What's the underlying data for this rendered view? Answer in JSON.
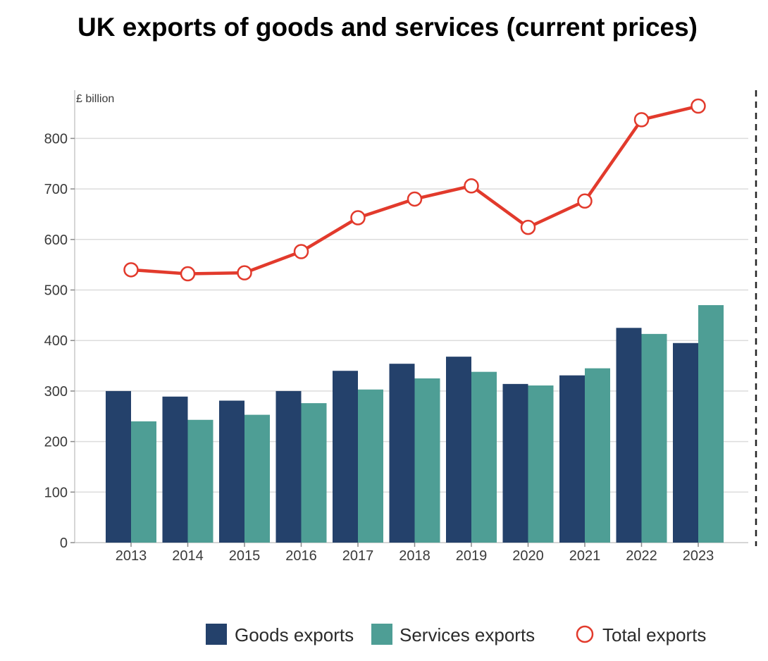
{
  "chart_data": {
    "type": "bar",
    "title": "UK exports of goods and services (current prices)",
    "ylabel": "£ billion",
    "xlabel": "",
    "ylim": [
      0,
      880
    ],
    "yticks": [
      0,
      100,
      200,
      300,
      400,
      500,
      600,
      700,
      800
    ],
    "grid": true,
    "legend_position": "bottom",
    "categories": [
      "2013",
      "2014",
      "2015",
      "2016",
      "2017",
      "2018",
      "2019",
      "2020",
      "2021",
      "2022",
      "2023"
    ],
    "series": [
      {
        "name": "Goods exports",
        "kind": "bar",
        "color": "#24416b",
        "values": [
          300,
          289,
          281,
          300,
          340,
          354,
          368,
          314,
          331,
          425,
          395
        ]
      },
      {
        "name": "Services exports",
        "kind": "bar",
        "color": "#4e9e95",
        "values": [
          240,
          243,
          253,
          276,
          303,
          325,
          338,
          311,
          345,
          413,
          470
        ]
      },
      {
        "name": "Total exports",
        "kind": "line",
        "color": "#e23a2c",
        "values": [
          540,
          532,
          534,
          576,
          643,
          680,
          706,
          624,
          676,
          837,
          864
        ]
      }
    ]
  }
}
